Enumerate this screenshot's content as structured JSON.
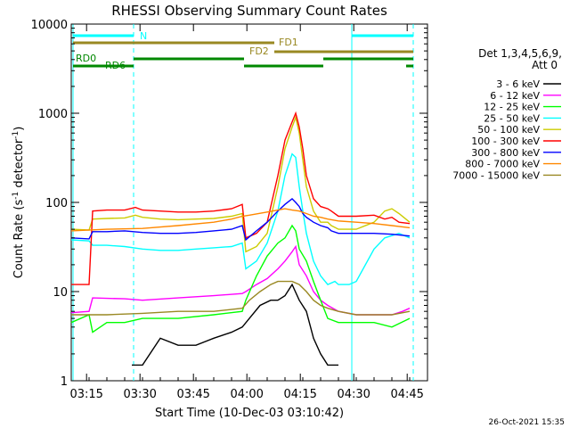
{
  "chart_data": {
    "type": "line",
    "title": "RHESSI Observing Summary Count Rates",
    "xlabel": "Start Time (10-Dec-03 03:10:42)",
    "ylabel_main": "Count Rate (s",
    "ylabel_sup1": "-1",
    "ylabel_mid": " detector",
    "ylabel_sup2": "-1",
    "ylabel_end": ")",
    "yscale": "log",
    "ylim": [
      1,
      10000
    ],
    "xlim_minutes": [
      0,
      100
    ],
    "x_ticks": [
      {
        "label": "03:15",
        "t": 4.3
      },
      {
        "label": "03:30",
        "t": 19.3
      },
      {
        "label": "03:45",
        "t": 34.3
      },
      {
        "label": "04:00",
        "t": 49.3
      },
      {
        "label": "04:15",
        "t": 64.3
      },
      {
        "label": "04:30",
        "t": 79.3
      },
      {
        "label": "04:45",
        "t": 94.3
      }
    ],
    "y_ticks": [
      {
        "label": "1",
        "v": 1
      },
      {
        "label": "10",
        "v": 10
      },
      {
        "label": "100",
        "v": 100
      },
      {
        "label": "1000",
        "v": 1000
      },
      {
        "label": "10000",
        "v": 10000
      }
    ],
    "legend_title": [
      "Det 1,3,4,5,6,9,",
      "Att 0"
    ],
    "series": [
      {
        "name": "3 - 6 keV",
        "color": "#000000",
        "points": [
          [
            17,
            1.5
          ],
          [
            20,
            1.5
          ],
          [
            25,
            3
          ],
          [
            30,
            2.5
          ],
          [
            35,
            2.5
          ],
          [
            40,
            3
          ],
          [
            45,
            3.5
          ],
          [
            48,
            4
          ],
          [
            50,
            5
          ],
          [
            53,
            7
          ],
          [
            56,
            8
          ],
          [
            58,
            8
          ],
          [
            60,
            9
          ],
          [
            62,
            12
          ],
          [
            64,
            8
          ],
          [
            66,
            6
          ],
          [
            68,
            3
          ],
          [
            70,
            2
          ],
          [
            72,
            1.5
          ],
          [
            75,
            1.5
          ]
        ]
      },
      {
        "name": "6 - 12 keV",
        "color": "#ff00ff",
        "points": [
          [
            0,
            5.8
          ],
          [
            5,
            6
          ],
          [
            6,
            8.5
          ],
          [
            15,
            8.3
          ],
          [
            20,
            8
          ],
          [
            30,
            8.5
          ],
          [
            40,
            9
          ],
          [
            48,
            9.5
          ],
          [
            49,
            10
          ],
          [
            52,
            12
          ],
          [
            55,
            14
          ],
          [
            58,
            18
          ],
          [
            60,
            22
          ],
          [
            62,
            28
          ],
          [
            63,
            32
          ],
          [
            64,
            20
          ],
          [
            66,
            15
          ],
          [
            68,
            10
          ],
          [
            70,
            8
          ],
          [
            72,
            7
          ],
          [
            75,
            6
          ],
          [
            80,
            5.5
          ],
          [
            85,
            5.5
          ],
          [
            90,
            5.5
          ],
          [
            93,
            6
          ],
          [
            95,
            6.5
          ]
        ]
      },
      {
        "name": "12 - 25 keV",
        "color": "#00ff00",
        "points": [
          [
            0,
            4.5
          ],
          [
            5,
            5.5
          ],
          [
            6,
            3.5
          ],
          [
            10,
            4.5
          ],
          [
            15,
            4.5
          ],
          [
            20,
            5
          ],
          [
            30,
            5
          ],
          [
            40,
            5.5
          ],
          [
            48,
            6
          ],
          [
            49,
            8
          ],
          [
            52,
            15
          ],
          [
            55,
            25
          ],
          [
            58,
            35
          ],
          [
            60,
            40
          ],
          [
            62,
            55
          ],
          [
            63,
            48
          ],
          [
            64,
            30
          ],
          [
            66,
            22
          ],
          [
            68,
            13
          ],
          [
            70,
            8
          ],
          [
            72,
            5
          ],
          [
            75,
            4.5
          ],
          [
            80,
            4.5
          ],
          [
            85,
            4.5
          ],
          [
            90,
            4
          ],
          [
            95,
            5
          ]
        ]
      },
      {
        "name": "25 - 50 keV",
        "color": "#00ffff",
        "points": [
          [
            0,
            38
          ],
          [
            5,
            37
          ],
          [
            6,
            33
          ],
          [
            10,
            33
          ],
          [
            15,
            32
          ],
          [
            20,
            30
          ],
          [
            25,
            29
          ],
          [
            30,
            29
          ],
          [
            35,
            30
          ],
          [
            40,
            31
          ],
          [
            45,
            32
          ],
          [
            48,
            35
          ],
          [
            49,
            18
          ],
          [
            52,
            22
          ],
          [
            55,
            35
          ],
          [
            58,
            80
          ],
          [
            60,
            200
          ],
          [
            62,
            350
          ],
          [
            63,
            320
          ],
          [
            64,
            150
          ],
          [
            65,
            80
          ],
          [
            66,
            45
          ],
          [
            68,
            22
          ],
          [
            70,
            15
          ],
          [
            72,
            12
          ],
          [
            74,
            13
          ],
          [
            75,
            12
          ],
          [
            78,
            12
          ],
          [
            80,
            13
          ],
          [
            85,
            30
          ],
          [
            88,
            40
          ],
          [
            92,
            45
          ],
          [
            95,
            40
          ]
        ]
      },
      {
        "name": "50 - 100 keV",
        "color": "#cccc00",
        "points": [
          [
            0,
            50
          ],
          [
            5,
            49
          ],
          [
            6,
            65
          ],
          [
            10,
            66
          ],
          [
            15,
            67
          ],
          [
            18,
            72
          ],
          [
            20,
            68
          ],
          [
            25,
            65
          ],
          [
            30,
            64
          ],
          [
            35,
            65
          ],
          [
            40,
            66
          ],
          [
            45,
            70
          ],
          [
            48,
            75
          ],
          [
            49,
            28
          ],
          [
            52,
            32
          ],
          [
            55,
            45
          ],
          [
            58,
            150
          ],
          [
            60,
            400
          ],
          [
            62,
            700
          ],
          [
            63,
            900
          ],
          [
            64,
            600
          ],
          [
            65,
            300
          ],
          [
            66,
            150
          ],
          [
            68,
            80
          ],
          [
            70,
            60
          ],
          [
            72,
            60
          ],
          [
            73,
            55
          ],
          [
            75,
            50
          ],
          [
            80,
            50
          ],
          [
            85,
            60
          ],
          [
            88,
            80
          ],
          [
            90,
            85
          ],
          [
            92,
            75
          ],
          [
            95,
            60
          ]
        ]
      },
      {
        "name": "100 - 300 keV",
        "color": "#ff0000",
        "points": [
          [
            0,
            12
          ],
          [
            5,
            12
          ],
          [
            6,
            80
          ],
          [
            10,
            82
          ],
          [
            15,
            82
          ],
          [
            18,
            88
          ],
          [
            20,
            82
          ],
          [
            25,
            80
          ],
          [
            30,
            78
          ],
          [
            35,
            78
          ],
          [
            40,
            80
          ],
          [
            45,
            85
          ],
          [
            48,
            95
          ],
          [
            49,
            40
          ],
          [
            52,
            45
          ],
          [
            55,
            60
          ],
          [
            58,
            200
          ],
          [
            60,
            500
          ],
          [
            62,
            800
          ],
          [
            63,
            1000
          ],
          [
            64,
            700
          ],
          [
            65,
            400
          ],
          [
            66,
            200
          ],
          [
            68,
            110
          ],
          [
            70,
            90
          ],
          [
            72,
            85
          ],
          [
            73,
            80
          ],
          [
            75,
            70
          ],
          [
            80,
            70
          ],
          [
            85,
            72
          ],
          [
            88,
            65
          ],
          [
            90,
            68
          ],
          [
            92,
            60
          ],
          [
            95,
            58
          ]
        ]
      },
      {
        "name": "300 - 800 keV",
        "color": "#0000ff",
        "points": [
          [
            0,
            40
          ],
          [
            5,
            39
          ],
          [
            6,
            47
          ],
          [
            10,
            47
          ],
          [
            15,
            48
          ],
          [
            20,
            46
          ],
          [
            25,
            45
          ],
          [
            30,
            45
          ],
          [
            35,
            46
          ],
          [
            40,
            48
          ],
          [
            45,
            50
          ],
          [
            48,
            55
          ],
          [
            49,
            38
          ],
          [
            52,
            48
          ],
          [
            55,
            60
          ],
          [
            58,
            80
          ],
          [
            60,
            95
          ],
          [
            62,
            110
          ],
          [
            63,
            100
          ],
          [
            64,
            90
          ],
          [
            65,
            75
          ],
          [
            66,
            68
          ],
          [
            68,
            60
          ],
          [
            70,
            55
          ],
          [
            72,
            52
          ],
          [
            73,
            48
          ],
          [
            75,
            45
          ],
          [
            80,
            45
          ],
          [
            85,
            45
          ],
          [
            90,
            44
          ],
          [
            95,
            42
          ]
        ]
      },
      {
        "name": "800 - 7000 keV",
        "color": "#ff8800",
        "points": [
          [
            0,
            48
          ],
          [
            10,
            50
          ],
          [
            20,
            51
          ],
          [
            30,
            55
          ],
          [
            40,
            60
          ],
          [
            45,
            65
          ],
          [
            48,
            70
          ],
          [
            50,
            72
          ],
          [
            55,
            78
          ],
          [
            58,
            82
          ],
          [
            60,
            85
          ],
          [
            62,
            82
          ],
          [
            64,
            80
          ],
          [
            66,
            75
          ],
          [
            68,
            70
          ],
          [
            70,
            68
          ],
          [
            72,
            65
          ],
          [
            75,
            62
          ],
          [
            80,
            60
          ],
          [
            85,
            58
          ],
          [
            90,
            55
          ],
          [
            95,
            52
          ]
        ]
      },
      {
        "name": "7000 - 15000 keV",
        "color": "#998822",
        "points": [
          [
            0,
            5.5
          ],
          [
            10,
            5.5
          ],
          [
            20,
            5.7
          ],
          [
            30,
            6
          ],
          [
            40,
            6
          ],
          [
            48,
            6.5
          ],
          [
            50,
            8
          ],
          [
            53,
            10
          ],
          [
            56,
            12
          ],
          [
            58,
            13
          ],
          [
            60,
            13
          ],
          [
            62,
            13
          ],
          [
            64,
            12
          ],
          [
            66,
            10
          ],
          [
            68,
            8
          ],
          [
            70,
            7
          ],
          [
            72,
            6.5
          ],
          [
            75,
            6
          ],
          [
            80,
            5.5
          ],
          [
            85,
            5.5
          ],
          [
            90,
            5.5
          ],
          [
            95,
            6
          ]
        ]
      }
    ],
    "annotations": [
      {
        "text": "N",
        "color": "#00ffff"
      },
      {
        "text": "FD1",
        "color": "#998822"
      },
      {
        "text": "FD2",
        "color": "#998822"
      },
      {
        "text": "RD0",
        "color": "#008800"
      },
      {
        "text": "RD6",
        "color": "#008800"
      }
    ],
    "timestamp": "26-Oct-2021 15:35"
  }
}
